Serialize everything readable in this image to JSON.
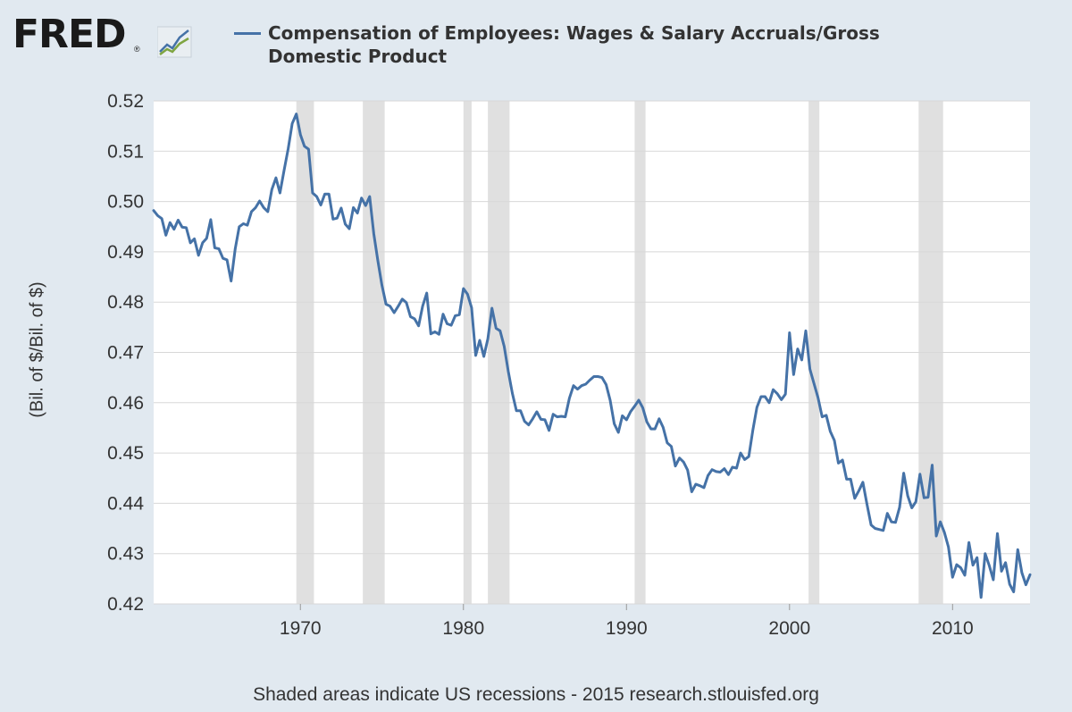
{
  "logo": {
    "text": "FRED",
    "reg": "®",
    "mark_icon": "fred-chart-logo-icon"
  },
  "legend": {
    "series_label": "Compensation of Employees: Wages & Salary Accruals/Gross Domestic Product",
    "color": "#4572a7"
  },
  "footer": {
    "text": "Shaded areas indicate US recessions - 2015 research.stlouisfed.org"
  },
  "colors": {
    "background": "#e1e9f0",
    "plot_bg": "#ffffff",
    "line": "#4572a7",
    "recession": "#e0e0e0",
    "grid": "#d8d8d8"
  },
  "chart_data": {
    "type": "line",
    "title": "",
    "xlabel": "",
    "ylabel": "(Bil. of $/Bil. of $)",
    "xlim": [
      1961.0,
      2014.75
    ],
    "ylim": [
      0.42,
      0.52
    ],
    "yticks": [
      "0.42",
      "0.43",
      "0.44",
      "0.45",
      "0.46",
      "0.47",
      "0.48",
      "0.49",
      "0.50",
      "0.51",
      "0.52"
    ],
    "xticks": [
      "1970",
      "1980",
      "1990",
      "2000",
      "2010"
    ],
    "grid": true,
    "recessions": [
      [
        1969.75,
        1970.83
      ],
      [
        1973.83,
        1975.17
      ],
      [
        1980.0,
        1980.5
      ],
      [
        1981.5,
        1982.83
      ],
      [
        1990.5,
        1991.17
      ],
      [
        2001.17,
        2001.83
      ],
      [
        2007.92,
        2009.42
      ]
    ],
    "series": [
      {
        "name": "Compensation of Employees: Wages & Salary Accruals/Gross Domestic Product",
        "x": [
          1961.0,
          1961.25,
          1961.5,
          1961.75,
          1962.0,
          1962.25,
          1962.5,
          1962.75,
          1963.0,
          1963.25,
          1963.5,
          1963.75,
          1964.0,
          1964.25,
          1964.5,
          1964.75,
          1965.0,
          1965.25,
          1965.5,
          1965.75,
          1966.0,
          1966.25,
          1966.5,
          1966.75,
          1967.0,
          1967.25,
          1967.5,
          1967.75,
          1968.0,
          1968.25,
          1968.5,
          1968.75,
          1969.0,
          1969.25,
          1969.5,
          1969.75,
          1970.0,
          1970.25,
          1970.5,
          1970.75,
          1971.0,
          1971.25,
          1971.5,
          1971.75,
          1972.0,
          1972.25,
          1972.5,
          1972.75,
          1973.0,
          1973.25,
          1973.5,
          1973.75,
          1974.0,
          1974.25,
          1974.5,
          1974.75,
          1975.0,
          1975.25,
          1975.5,
          1975.75,
          1976.0,
          1976.25,
          1976.5,
          1976.75,
          1977.0,
          1977.25,
          1977.5,
          1977.75,
          1978.0,
          1978.25,
          1978.5,
          1978.75,
          1979.0,
          1979.25,
          1979.5,
          1979.75,
          1980.0,
          1980.25,
          1980.5,
          1980.75,
          1981.0,
          1981.25,
          1981.5,
          1981.75,
          1982.0,
          1982.25,
          1982.5,
          1982.75,
          1983.0,
          1983.25,
          1983.5,
          1983.75,
          1984.0,
          1984.25,
          1984.5,
          1984.75,
          1985.0,
          1985.25,
          1985.5,
          1985.75,
          1986.0,
          1986.25,
          1986.5,
          1986.75,
          1987.0,
          1987.25,
          1987.5,
          1987.75,
          1988.0,
          1988.25,
          1988.5,
          1988.75,
          1989.0,
          1989.25,
          1989.5,
          1989.75,
          1990.0,
          1990.25,
          1990.5,
          1990.75,
          1991.0,
          1991.25,
          1991.5,
          1991.75,
          1992.0,
          1992.25,
          1992.5,
          1992.75,
          1993.0,
          1993.25,
          1993.5,
          1993.75,
          1994.0,
          1994.25,
          1994.5,
          1994.75,
          1995.0,
          1995.25,
          1995.5,
          1995.75,
          1996.0,
          1996.25,
          1996.5,
          1996.75,
          1997.0,
          1997.25,
          1997.5,
          1997.75,
          1998.0,
          1998.25,
          1998.5,
          1998.75,
          1999.0,
          1999.25,
          1999.5,
          1999.75,
          2000.0,
          2000.25,
          2000.5,
          2000.75,
          2001.0,
          2001.25,
          2001.5,
          2001.75,
          2002.0,
          2002.25,
          2002.5,
          2002.75,
          2003.0,
          2003.25,
          2003.5,
          2003.75,
          2004.0,
          2004.25,
          2004.5,
          2004.75,
          2005.0,
          2005.25,
          2005.5,
          2005.75,
          2006.0,
          2006.25,
          2006.5,
          2006.75,
          2007.0,
          2007.25,
          2007.5,
          2007.75,
          2008.0,
          2008.25,
          2008.5,
          2008.75,
          2009.0,
          2009.25,
          2009.5,
          2009.75,
          2010.0,
          2010.25,
          2010.5,
          2010.75,
          2011.0,
          2011.25,
          2011.5,
          2011.75,
          2012.0,
          2012.25,
          2012.5,
          2012.75,
          2013.0,
          2013.25,
          2013.5,
          2013.75,
          2014.0,
          2014.25,
          2014.5,
          2014.75
        ],
        "y": [
          0.4982,
          0.4972,
          0.4966,
          0.4933,
          0.4958,
          0.4945,
          0.4963,
          0.4949,
          0.4948,
          0.4918,
          0.4926,
          0.4893,
          0.4918,
          0.4927,
          0.4964,
          0.4908,
          0.4906,
          0.4887,
          0.4884,
          0.4842,
          0.4906,
          0.495,
          0.4956,
          0.4953,
          0.498,
          0.4988,
          0.5001,
          0.4988,
          0.498,
          0.5024,
          0.5047,
          0.5017,
          0.5062,
          0.5105,
          0.5155,
          0.5174,
          0.5133,
          0.511,
          0.5104,
          0.5017,
          0.501,
          0.4993,
          0.5015,
          0.5015,
          0.4965,
          0.4967,
          0.4987,
          0.4955,
          0.4946,
          0.4988,
          0.4977,
          0.5007,
          0.4992,
          0.501,
          0.4936,
          0.4882,
          0.4834,
          0.4796,
          0.4792,
          0.4779,
          0.4792,
          0.4806,
          0.4799,
          0.4771,
          0.4767,
          0.4753,
          0.4792,
          0.4818,
          0.4737,
          0.4741,
          0.4736,
          0.4776,
          0.4757,
          0.4754,
          0.4773,
          0.4775,
          0.4827,
          0.4816,
          0.4789,
          0.4694,
          0.4724,
          0.4692,
          0.4727,
          0.4788,
          0.4748,
          0.4743,
          0.4712,
          0.4662,
          0.4619,
          0.4584,
          0.4584,
          0.4563,
          0.4556,
          0.4568,
          0.4582,
          0.4567,
          0.4566,
          0.4545,
          0.4577,
          0.4572,
          0.4573,
          0.4572,
          0.4609,
          0.4634,
          0.4627,
          0.4634,
          0.4637,
          0.4645,
          0.4652,
          0.4652,
          0.465,
          0.4636,
          0.4605,
          0.4558,
          0.4541,
          0.4574,
          0.4566,
          0.4582,
          0.4593,
          0.4605,
          0.459,
          0.4562,
          0.4548,
          0.4548,
          0.4568,
          0.4551,
          0.452,
          0.4513,
          0.4474,
          0.449,
          0.4482,
          0.4466,
          0.4423,
          0.4438,
          0.4435,
          0.4431,
          0.4455,
          0.4467,
          0.4463,
          0.4462,
          0.4469,
          0.4457,
          0.4472,
          0.447,
          0.45,
          0.4487,
          0.4493,
          0.4545,
          0.4591,
          0.4612,
          0.4612,
          0.46,
          0.4626,
          0.4618,
          0.4606,
          0.4617,
          0.4739,
          0.4656,
          0.4707,
          0.4685,
          0.4743,
          0.4667,
          0.4638,
          0.461,
          0.4572,
          0.4575,
          0.4543,
          0.4525,
          0.448,
          0.4486,
          0.4448,
          0.4448,
          0.441,
          0.4425,
          0.4442,
          0.4398,
          0.4357,
          0.435,
          0.4348,
          0.4346,
          0.438,
          0.4363,
          0.4362,
          0.4392,
          0.446,
          0.4415,
          0.4391,
          0.4403,
          0.4458,
          0.4411,
          0.4412,
          0.4476,
          0.4335,
          0.4363,
          0.4342,
          0.4313,
          0.4253,
          0.4278,
          0.4272,
          0.4257,
          0.4322,
          0.4277,
          0.4292,
          0.4213,
          0.43,
          0.4276,
          0.4248,
          0.434,
          0.4265,
          0.4282,
          0.4239,
          0.4224,
          0.4308,
          0.4262,
          0.4238,
          0.4258
        ]
      }
    ]
  }
}
